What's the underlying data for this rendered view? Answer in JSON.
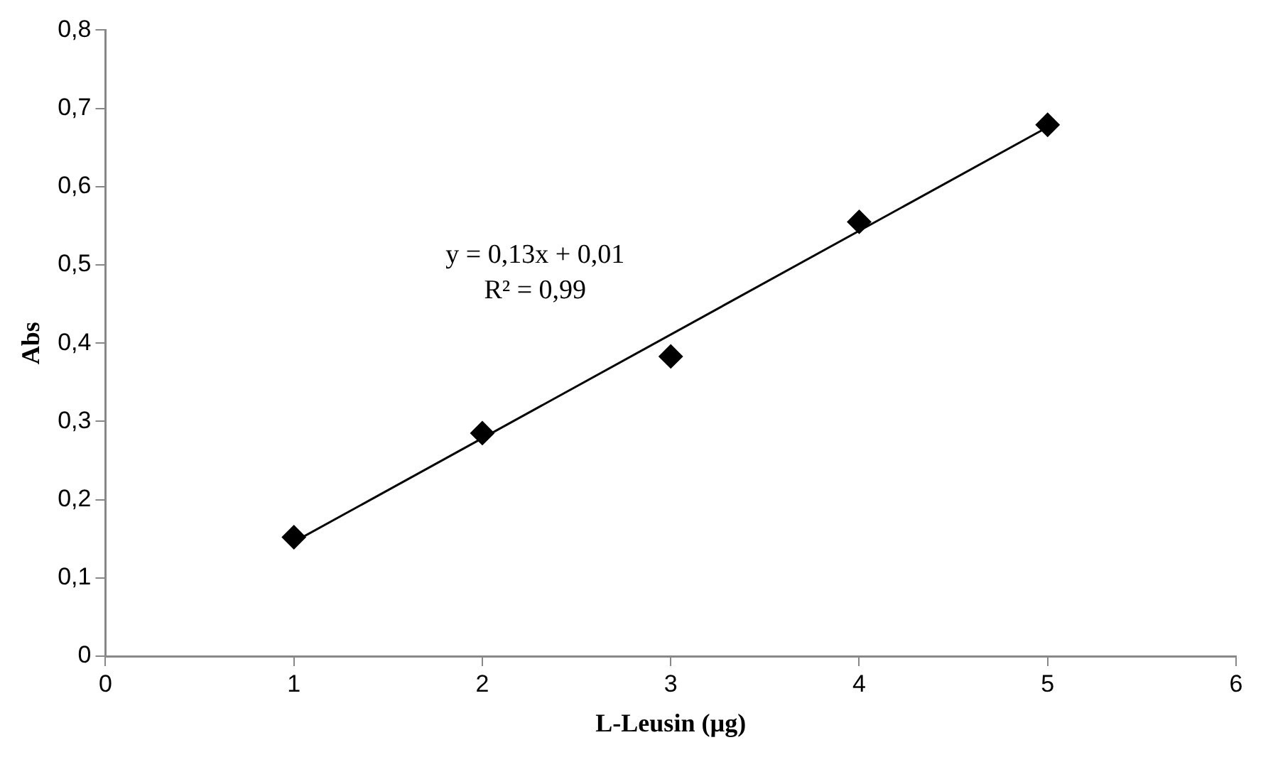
{
  "chart_data": {
    "type": "scatter",
    "xlabel": "L-Leusin (µg)",
    "ylabel": "Abs",
    "series": [
      {
        "color": "#000000",
        "marker": "diamond",
        "x": [
          1,
          2,
          3,
          4,
          5
        ],
        "values": [
          0.152,
          0.285,
          0.383,
          0.555,
          0.679
        ]
      },
      {
        "type": "line",
        "color": "#000000",
        "marker": "none",
        "line_style": "solid",
        "x": [
          1,
          5
        ],
        "values": [
          0.146,
          0.676
        ]
      }
    ],
    "xlim": [
      0,
      6
    ],
    "xticks": [
      0,
      1,
      2,
      3,
      4,
      5,
      6
    ],
    "ylim": [
      0,
      0.8
    ],
    "yticks": [
      0,
      {
        "value": 0.1,
        "label": "0,1"
      },
      {
        "value": 0.2,
        "label": "0,2"
      },
      {
        "value": 0.3,
        "label": "0,3"
      },
      {
        "value": 0.4,
        "label": "0,4"
      },
      {
        "value": 0.5,
        "label": "0,5"
      },
      {
        "value": 0.6,
        "label": "0,6"
      },
      {
        "value": 0.7,
        "label": "0,7"
      },
      {
        "value": 0.8,
        "label": "0,8"
      }
    ],
    "grid": false,
    "legend": false,
    "annotations": [
      "y = 0,13x + 0,01",
      "R² = 0,99"
    ]
  }
}
